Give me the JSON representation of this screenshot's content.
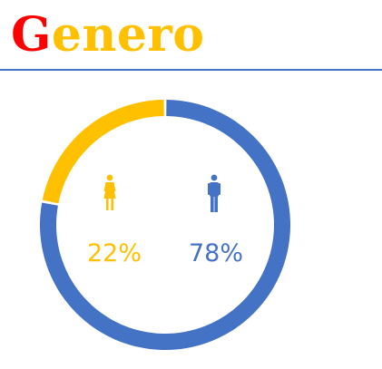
{
  "title": {
    "first_letter": "G",
    "rest": "enero"
  },
  "colors": {
    "title_first_letter": "#ff0000",
    "title_rest": "#ffc000",
    "rule": "#4472c4",
    "female": "#ffc000",
    "male": "#4472c4"
  },
  "chart_data": {
    "type": "pie",
    "variant": "donut",
    "slices": [
      {
        "label": "22%",
        "value": 22,
        "icon": "female-icon",
        "color": "#ffc000"
      },
      {
        "label": "78%",
        "value": 78,
        "icon": "male-icon",
        "color": "#4472c4"
      }
    ]
  }
}
